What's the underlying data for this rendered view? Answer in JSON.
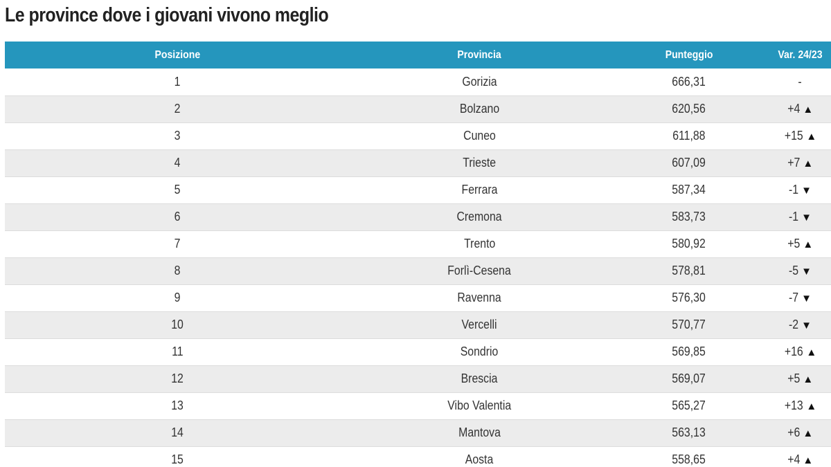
{
  "title": "Le province dove i giovani vivono meglio",
  "table": {
    "headers": [
      "Posizione",
      "Provincia",
      "Punteggio",
      "Var. 24/23"
    ],
    "rows": [
      {
        "pos": "1",
        "prov": "Gorizia",
        "score": "666,31",
        "var": "-",
        "dir": ""
      },
      {
        "pos": "2",
        "prov": "Bolzano",
        "score": "620,56",
        "var": "+4",
        "dir": "up"
      },
      {
        "pos": "3",
        "prov": "Cuneo",
        "score": "611,88",
        "var": "+15",
        "dir": "up"
      },
      {
        "pos": "4",
        "prov": "Trieste",
        "score": "607,09",
        "var": "+7",
        "dir": "up"
      },
      {
        "pos": "5",
        "prov": "Ferrara",
        "score": "587,34",
        "var": "-1",
        "dir": "down"
      },
      {
        "pos": "6",
        "prov": "Cremona",
        "score": "583,73",
        "var": "-1",
        "dir": "down"
      },
      {
        "pos": "7",
        "prov": "Trento",
        "score": "580,92",
        "var": "+5",
        "dir": "up"
      },
      {
        "pos": "8",
        "prov": "Forlì-Cesena",
        "score": "578,81",
        "var": "-5",
        "dir": "down"
      },
      {
        "pos": "9",
        "prov": "Ravenna",
        "score": "576,30",
        "var": "-7",
        "dir": "down"
      },
      {
        "pos": "10",
        "prov": "Vercelli",
        "score": "570,77",
        "var": "-2",
        "dir": "down"
      },
      {
        "pos": "11",
        "prov": "Sondrio",
        "score": "569,85",
        "var": "+16",
        "dir": "up"
      },
      {
        "pos": "12",
        "prov": "Brescia",
        "score": "569,07",
        "var": "+5",
        "dir": "up"
      },
      {
        "pos": "13",
        "prov": "Vibo Valentia",
        "score": "565,27",
        "var": "+13",
        "dir": "up"
      },
      {
        "pos": "14",
        "prov": "Mantova",
        "score": "563,13",
        "var": "+6",
        "dir": "up"
      },
      {
        "pos": "15",
        "prov": "Aosta",
        "score": "558,65",
        "var": "+4",
        "dir": "up"
      }
    ]
  },
  "icons": {
    "up": "triangle-up-icon",
    "down": "triangle-down-icon"
  }
}
